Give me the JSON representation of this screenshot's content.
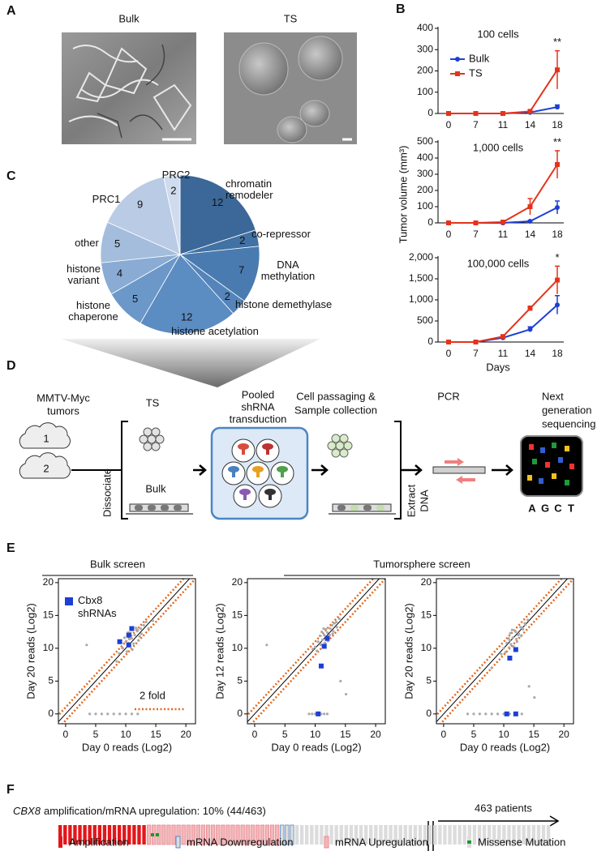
{
  "panel_labels": [
    "A",
    "B",
    "C",
    "D",
    "E",
    "F"
  ],
  "panel_a": {
    "images": [
      "Bulk",
      "TS"
    ]
  },
  "chart_data": [
    {
      "type": "line",
      "title": "100 cells",
      "ylabel": "Tumor volume (mm³)",
      "categories": [
        "0",
        "7",
        "11",
        "14",
        "18"
      ],
      "ylim": [
        0,
        400
      ],
      "yticks": [
        0,
        100,
        200,
        300,
        400
      ],
      "significance": "**",
      "series": [
        {
          "name": "Bulk",
          "color": "#1d3fd6",
          "marker": "circle",
          "values": [
            0,
            0,
            0,
            5,
            30
          ],
          "errors": [
            0,
            0,
            0,
            3,
            10
          ]
        },
        {
          "name": "TS",
          "color": "#e5331b",
          "marker": "square",
          "values": [
            0,
            0,
            0,
            10,
            205
          ],
          "errors": [
            0,
            0,
            0,
            4,
            90
          ]
        }
      ]
    },
    {
      "type": "line",
      "title": "1,000 cells",
      "categories": [
        "0",
        "7",
        "11",
        "14",
        "18"
      ],
      "ylim": [
        0,
        500
      ],
      "yticks": [
        0,
        100,
        200,
        300,
        400,
        500
      ],
      "significance": "**",
      "series": [
        {
          "color": "#1d3fd6",
          "marker": "circle",
          "values": [
            0,
            0,
            0,
            10,
            95
          ],
          "errors": [
            0,
            0,
            0,
            5,
            40
          ]
        },
        {
          "color": "#e5331b",
          "marker": "square",
          "values": [
            0,
            0,
            5,
            100,
            360
          ],
          "errors": [
            0,
            0,
            2,
            50,
            85
          ]
        }
      ]
    },
    {
      "type": "line",
      "title": "100,000 cells",
      "xlabel": "Days",
      "categories": [
        "0",
        "7",
        "11",
        "14",
        "18"
      ],
      "ylim": [
        0,
        2000
      ],
      "yticks": [
        0,
        500,
        {
          "value": 1000,
          "label": "1,000"
        },
        {
          "value": 1500,
          "label": "1,500"
        },
        {
          "value": 2000,
          "label": "2,000"
        }
      ],
      "significance": "*",
      "series": [
        {
          "color": "#1d3fd6",
          "marker": "circle",
          "values": [
            0,
            0,
            100,
            300,
            880
          ],
          "errors": [
            0,
            0,
            20,
            60,
            220
          ]
        },
        {
          "color": "#e5331b",
          "marker": "square",
          "values": [
            0,
            0,
            130,
            800,
            1470
          ],
          "errors": [
            0,
            0,
            20,
            50,
            330
          ]
        }
      ]
    },
    {
      "type": "pie",
      "categories": [
        "chromatin\nremodeler",
        "co-repressor",
        "DNA\nmethylation",
        "histone demethylase",
        "histone acetylation",
        "histone\nchaperone",
        "histone\nvariant",
        "other",
        "PRC1",
        "PRC2"
      ],
      "values": [
        12,
        2,
        7,
        2,
        12,
        5,
        4,
        5,
        9,
        2
      ],
      "colors": [
        "#3b6898",
        "#4271a3",
        "#4a7bb0",
        "#5484ba",
        "#5b8cc2",
        "#6c98c9",
        "#8aabd3",
        "#a4bddd",
        "#b9cbe5",
        "#d0dcee"
      ]
    },
    {
      "type": "scatter",
      "xlabel": "Day 0 reads (Log2)",
      "ylabel": "Day 20 reads (Log2)",
      "xlim": [
        -1.2,
        21.6
      ],
      "ylim": [
        -1.5,
        20.6
      ],
      "xticks": [
        0,
        5,
        10,
        15,
        20
      ],
      "yticks": [
        0,
        5,
        10,
        15,
        20
      ],
      "fold_label": "2 fold",
      "series": [
        {
          "color": "#aaaaaa",
          "x": [
            9.5,
            10,
            10.5,
            11,
            11.5,
            12,
            12.5,
            13,
            10.2,
            11.3,
            12.1,
            9.8,
            10.8,
            11.7,
            12.6,
            13.4,
            8.9,
            9.4,
            10.6,
            11.9,
            12.3,
            13.8,
            14.5,
            11.1,
            10.4,
            4,
            5,
            6,
            7,
            8,
            9,
            10,
            11,
            12,
            3.5,
            8.5
          ],
          "y": [
            10,
            11,
            10.8,
            11.5,
            12,
            12.8,
            13,
            13.5,
            9.5,
            10.7,
            11.2,
            11.6,
            12.3,
            13.1,
            12.2,
            14,
            9.2,
            10.1,
            11.4,
            12.6,
            11.8,
            13,
            14.2,
            9.8,
            12.4,
            0,
            0,
            0,
            0,
            0,
            0,
            0,
            0,
            0,
            10.5,
            8
          ]
        },
        {
          "name": "Cbx8\nshRNAs",
          "color": "#1d3fd6",
          "x": [
            9,
            10.5,
            11,
            10.5
          ],
          "y": [
            11,
            12,
            13,
            10.5
          ]
        }
      ]
    },
    {
      "type": "scatter",
      "xlabel": "Day 0 reads (Log2)",
      "ylabel": "Day 12 reads (Log2)",
      "xlim": [
        -1.2,
        21.6
      ],
      "ylim": [
        -1.5,
        20.6
      ],
      "xticks": [
        0,
        5,
        10,
        15,
        20
      ],
      "yticks": [
        0,
        5,
        10,
        15,
        20
      ],
      "series": [
        {
          "color": "#aaaaaa",
          "x": [
            10,
            10.5,
            11,
            11.5,
            12,
            12.5,
            13,
            13.5,
            10.3,
            11.2,
            12.2,
            11.8,
            12.8,
            10.8,
            11.6,
            12.4,
            13.2,
            14,
            9.6,
            11.4,
            12.9,
            13.6,
            10.9,
            12.1,
            11.1,
            9,
            9.5,
            10,
            11,
            11.5,
            12,
            2,
            14.2,
            15.1
          ],
          "y": [
            10.2,
            11,
            10.5,
            12,
            12.4,
            13,
            12.6,
            14,
            9.6,
            11.3,
            11.8,
            12.9,
            13.5,
            11.9,
            10.8,
            12,
            13.8,
            14.5,
            9.9,
            13,
            12.2,
            13.2,
            10.6,
            11.1,
            12.5,
            0,
            0,
            0,
            0,
            0,
            0,
            10.5,
            5,
            3
          ]
        },
        {
          "color": "#1d3fd6",
          "x": [
            12,
            11.5,
            11,
            10.5
          ],
          "y": [
            11.5,
            10.3,
            7.3,
            0
          ]
        }
      ]
    },
    {
      "type": "scatter",
      "xlabel": "Day 0 reads (Log2)",
      "ylabel": "Day 20 reads (Log2)",
      "xlim": [
        -1.2,
        21.6
      ],
      "ylim": [
        -1.5,
        20.6
      ],
      "xticks": [
        0,
        5,
        10,
        15,
        20
      ],
      "yticks": [
        0,
        5,
        10,
        15,
        20
      ],
      "series": [
        {
          "color": "#aaaaaa",
          "x": [
            10,
            10.5,
            11,
            11.5,
            12,
            12.5,
            13,
            13.5,
            10.3,
            11.2,
            12.2,
            11.8,
            12.8,
            10.8,
            11.6,
            12.4,
            13.2,
            14,
            9.6,
            11.4,
            12.9,
            13.6,
            10.9,
            12.1,
            11.1,
            4,
            5,
            6,
            7,
            8,
            9,
            10,
            11,
            12,
            13,
            14.2,
            15.1,
            8
          ],
          "y": [
            10,
            10.8,
            11.2,
            11.6,
            12.5,
            12.2,
            13.1,
            13.8,
            9.4,
            10.6,
            11,
            12.7,
            13.2,
            11.5,
            10.3,
            12,
            12.9,
            14.3,
            9.1,
            12.8,
            11.9,
            13.6,
            10.1,
            11.4,
            12.3,
            0,
            0,
            0,
            0,
            0,
            0,
            0,
            0,
            0,
            0,
            4.2,
            2.5,
            7
          ]
        },
        {
          "color": "#1d3fd6",
          "x": [
            12,
            11,
            10.5,
            12
          ],
          "y": [
            9.8,
            8.5,
            0,
            0
          ]
        }
      ]
    }
  ],
  "diagram": {
    "tumors": [
      "MMTV-Myc",
      "tumors"
    ],
    "tumor_ids": [
      "1",
      "2"
    ],
    "dissociate": "Dissociate",
    "ts": "TS",
    "bulk": "Bulk",
    "transduction": [
      "Pooled",
      "shRNA",
      "transduction"
    ],
    "passaging": [
      "Cell passaging &",
      "Sample collection"
    ],
    "extract": [
      "Extract",
      "DNA"
    ],
    "pcr": "PCR",
    "sequencing": [
      "Next",
      "generation",
      "sequencing"
    ],
    "bases": [
      {
        "text": "A",
        "color": "#e5231b"
      },
      {
        "text": "G",
        "color": "#2f5fd0"
      },
      {
        "text": "C",
        "color": "#f2c21b"
      },
      {
        "text": "T",
        "color": "#1f9a3a"
      }
    ]
  },
  "panel_e": {
    "headers": [
      "Bulk screen",
      "Tumorsphere screen"
    ]
  },
  "panel_f": {
    "gene": "CBX8",
    "summary": "amplification/mRNA upregulation: 10% (44/463)",
    "patients": "463 patients",
    "counts": {
      "amplification": 18,
      "upregulation": 27,
      "downregulation": 3,
      "unaltered": 52
    },
    "legend": [
      "Amplification",
      "mRNA Downregulation",
      "mRNA Upregulation",
      "Missense Mutation"
    ]
  }
}
